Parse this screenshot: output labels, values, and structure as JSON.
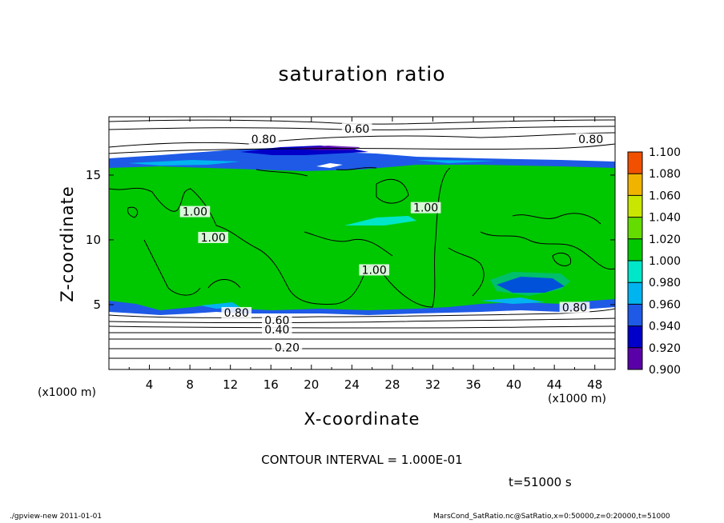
{
  "chart_data": {
    "type": "heatmap",
    "title": "saturation ratio",
    "xlabel": "X-coordinate",
    "ylabel": "Z-coordinate",
    "x_unit_left": "(x1000 m)",
    "x_unit_right": "(x1000 m)",
    "xlim": [
      0,
      50
    ],
    "ylim": [
      0,
      19.5
    ],
    "x_ticks": [
      4,
      8,
      12,
      16,
      20,
      24,
      28,
      32,
      36,
      40,
      44,
      48
    ],
    "y_ticks": [
      5,
      10,
      15
    ],
    "colorbar": {
      "levels": [
        0.9,
        0.92,
        0.94,
        0.96,
        0.98,
        1.0,
        1.02,
        1.04,
        1.06,
        1.08,
        1.1
      ],
      "labels": [
        "0.900",
        "0.920",
        "0.940",
        "0.960",
        "0.980",
        "1.000",
        "1.020",
        "1.040",
        "1.060",
        "1.080",
        "1.100"
      ],
      "colors": [
        "#5a00a8",
        "#0000c8",
        "#1e5ae6",
        "#00b4f0",
        "#00e6c8",
        "#00c800",
        "#64dc00",
        "#c8e600",
        "#f0b400",
        "#f05000",
        "#f08080"
      ]
    },
    "field": {
      "dominant_value": 1.0,
      "lower_boundary_z": 4.6,
      "upper_boundary_z": 16.4
    },
    "contour_labels": [
      {
        "text": "0.60",
        "x": 24.5,
        "z": 18.4
      },
      {
        "text": "0.80",
        "x": 15.3,
        "z": 17.6
      },
      {
        "text": "0.80",
        "x": 47.6,
        "z": 17.6
      },
      {
        "text": "1.00",
        "x": 8.5,
        "z": 12.0
      },
      {
        "text": "1.00",
        "x": 10.3,
        "z": 10.0
      },
      {
        "text": "1.00",
        "x": 31.3,
        "z": 12.3
      },
      {
        "text": "1.00",
        "x": 26.2,
        "z": 7.5
      },
      {
        "text": "0.80",
        "x": 12.6,
        "z": 4.2
      },
      {
        "text": "0.80",
        "x": 46.0,
        "z": 4.6
      },
      {
        "text": "0.60",
        "x": 16.6,
        "z": 3.6
      },
      {
        "text": "0.40",
        "x": 16.6,
        "z": 2.9
      },
      {
        "text": "0.20",
        "x": 17.6,
        "z": 1.5
      }
    ],
    "contour_interval_text": "CONTOUR INTERVAL = 1.000E-01",
    "time_text": "t=51000 s"
  },
  "footer": {
    "left": "./gpview-new  2011-01-01",
    "right": "MarsCond_SatRatio.nc@SatRatio,x=0:50000,z=0:20000,t=51000"
  }
}
